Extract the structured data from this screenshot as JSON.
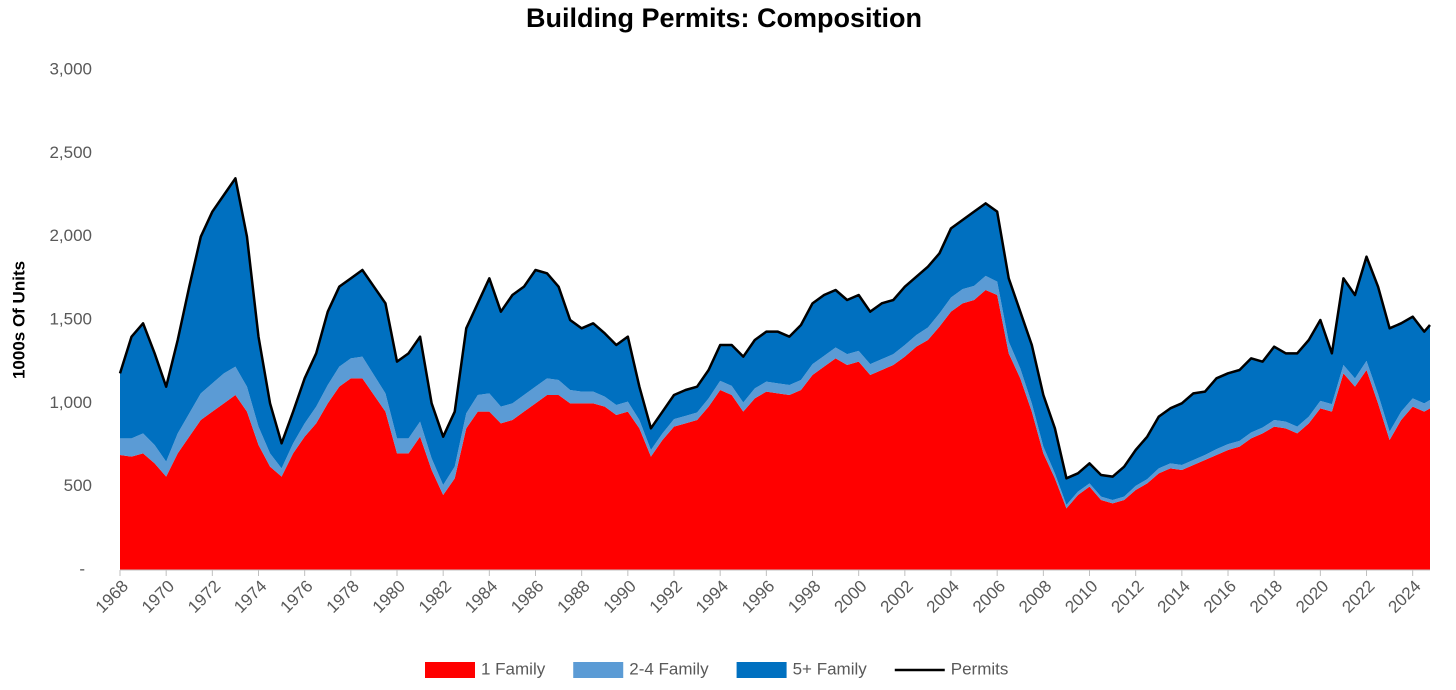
{
  "chart_data": {
    "type": "stacked-area",
    "title": "Building Permits: Composition",
    "y_label": "1000s Of Units",
    "x": [
      1968,
      1968.5,
      1969,
      1969.5,
      1970,
      1970.5,
      1971,
      1971.5,
      1972,
      1972.5,
      1973,
      1973.5,
      1974,
      1974.5,
      1975,
      1975.5,
      1976,
      1976.5,
      1977,
      1977.5,
      1978,
      1978.5,
      1979,
      1979.5,
      1980,
      1980.5,
      1981,
      1981.5,
      1982,
      1982.5,
      1983,
      1983.5,
      1984,
      1984.5,
      1985,
      1985.5,
      1986,
      1986.5,
      1987,
      1987.5,
      1988,
      1988.5,
      1989,
      1989.5,
      1990,
      1990.5,
      1991,
      1991.5,
      1992,
      1992.5,
      1993,
      1993.5,
      1994,
      1994.5,
      1995,
      1995.5,
      1996,
      1996.5,
      1997,
      1997.5,
      1998,
      1998.5,
      1999,
      1999.5,
      2000,
      2000.5,
      2001,
      2001.5,
      2002,
      2002.5,
      2003,
      2003.5,
      2004,
      2004.5,
      2005,
      2005.5,
      2006,
      2006.5,
      2007,
      2007.5,
      2008,
      2008.5,
      2009,
      2009.5,
      2010,
      2010.5,
      2011,
      2011.5,
      2012,
      2012.5,
      2013,
      2013.5,
      2014,
      2014.5,
      2015,
      2015.5,
      2016,
      2016.5,
      2017,
      2017.5,
      2018,
      2018.5,
      2019,
      2019.5,
      2020,
      2020.5,
      2021,
      2021.5,
      2022,
      2022.5,
      2023,
      2023.5,
      2024,
      2024.5,
      2024.75
    ],
    "series": [
      {
        "name": "1 Family",
        "type": "area",
        "color": "#ff0000",
        "values": [
          690,
          680,
          700,
          640,
          560,
          700,
          800,
          900,
          950,
          1000,
          1050,
          950,
          750,
          620,
          560,
          700,
          800,
          880,
          1000,
          1100,
          1150,
          1150,
          1050,
          950,
          700,
          700,
          800,
          600,
          450,
          550,
          850,
          950,
          950,
          880,
          900,
          950,
          1000,
          1050,
          1050,
          1000,
          1000,
          1000,
          980,
          930,
          950,
          850,
          680,
          780,
          860,
          880,
          900,
          980,
          1080,
          1050,
          950,
          1030,
          1070,
          1060,
          1050,
          1080,
          1170,
          1220,
          1270,
          1230,
          1250,
          1170,
          1200,
          1230,
          1280,
          1340,
          1380,
          1460,
          1550,
          1600,
          1620,
          1680,
          1650,
          1300,
          1150,
          950,
          700,
          550,
          370,
          450,
          500,
          420,
          400,
          420,
          480,
          520,
          580,
          610,
          600,
          630,
          660,
          690,
          720,
          740,
          790,
          820,
          860,
          850,
          820,
          880,
          970,
          950,
          1180,
          1100,
          1200,
          1000,
          780,
          900,
          980,
          950,
          970
        ]
      },
      {
        "name": "2-4 Family",
        "type": "area",
        "color": "#5b9bd5",
        "values": [
          100,
          110,
          120,
          110,
          90,
          120,
          140,
          160,
          170,
          180,
          170,
          150,
          110,
          80,
          50,
          60,
          80,
          100,
          110,
          120,
          120,
          130,
          120,
          110,
          90,
          90,
          90,
          70,
          60,
          70,
          90,
          100,
          110,
          100,
          100,
          100,
          100,
          100,
          90,
          80,
          70,
          70,
          60,
          60,
          60,
          50,
          40,
          40,
          45,
          45,
          45,
          50,
          55,
          55,
          55,
          60,
          60,
          60,
          60,
          60,
          65,
          65,
          65,
          65,
          65,
          65,
          65,
          65,
          70,
          70,
          75,
          80,
          85,
          85,
          85,
          85,
          80,
          70,
          60,
          50,
          40,
          30,
          20,
          20,
          20,
          20,
          20,
          20,
          25,
          25,
          30,
          30,
          30,
          30,
          30,
          35,
          35,
          35,
          35,
          35,
          40,
          40,
          40,
          40,
          45,
          45,
          50,
          50,
          55,
          55,
          50,
          50,
          50,
          50,
          50
        ]
      },
      {
        "name": "5+ Family",
        "type": "area",
        "color": "#0070c0",
        "values": [
          390,
          610,
          660,
          550,
          450,
          560,
          760,
          940,
          1030,
          1070,
          1130,
          900,
          540,
          300,
          150,
          190,
          270,
          320,
          440,
          480,
          480,
          520,
          530,
          540,
          460,
          510,
          510,
          330,
          290,
          330,
          510,
          550,
          690,
          570,
          650,
          650,
          700,
          630,
          560,
          420,
          380,
          410,
          380,
          360,
          390,
          200,
          130,
          130,
          145,
          155,
          155,
          170,
          215,
          245,
          275,
          290,
          300,
          310,
          290,
          330,
          365,
          365,
          345,
          325,
          335,
          315,
          335,
          325,
          350,
          350,
          365,
          360,
          415,
          415,
          445,
          435,
          420,
          380,
          340,
          350,
          310,
          270,
          160,
          110,
          120,
          130,
          140,
          180,
          215,
          255,
          310,
          330,
          370,
          400,
          380,
          425,
          425,
          425,
          445,
          395,
          440,
          410,
          440,
          460,
          485,
          305,
          520,
          500,
          625,
          645,
          620,
          530,
          490,
          430,
          450
        ]
      },
      {
        "name": "Permits",
        "type": "line",
        "color": "#000000",
        "values": [
          1180,
          1400,
          1480,
          1300,
          1100,
          1380,
          1700,
          2000,
          2150,
          2250,
          2350,
          2000,
          1400,
          1000,
          760,
          950,
          1150,
          1300,
          1550,
          1700,
          1750,
          1800,
          1700,
          1600,
          1250,
          1300,
          1400,
          1000,
          800,
          950,
          1450,
          1600,
          1750,
          1550,
          1650,
          1700,
          1800,
          1780,
          1700,
          1500,
          1450,
          1480,
          1420,
          1350,
          1400,
          1100,
          850,
          950,
          1050,
          1080,
          1100,
          1200,
          1350,
          1350,
          1280,
          1380,
          1430,
          1430,
          1400,
          1470,
          1600,
          1650,
          1680,
          1620,
          1650,
          1550,
          1600,
          1620,
          1700,
          1760,
          1820,
          1900,
          2050,
          2100,
          2150,
          2200,
          2150,
          1750,
          1550,
          1350,
          1050,
          850,
          550,
          580,
          640,
          570,
          560,
          620,
          720,
          800,
          920,
          970,
          1000,
          1060,
          1070,
          1150,
          1180,
          1200,
          1270,
          1250,
          1340,
          1300,
          1300,
          1380,
          1500,
          1300,
          1750,
          1650,
          1880,
          1700,
          1450,
          1480,
          1520,
          1430,
          1470
        ]
      }
    ],
    "xlim": [
      1968,
      2024.75
    ],
    "xticks": [
      1968,
      1970,
      1972,
      1974,
      1976,
      1978,
      1980,
      1982,
      1984,
      1986,
      1988,
      1990,
      1992,
      1994,
      1996,
      1998,
      2000,
      2002,
      2004,
      2006,
      2008,
      2010,
      2012,
      2014,
      2016,
      2018,
      2020,
      2022,
      2024
    ],
    "ylim": [
      0,
      3000
    ],
    "yticks": [
      {
        "value": 0,
        "label": "-"
      },
      500,
      {
        "value": 1000,
        "label": "1,000"
      },
      {
        "value": 1500,
        "label": "1,500"
      },
      {
        "value": 2000,
        "label": "2,000"
      },
      {
        "value": 2500,
        "label": "2,500"
      },
      {
        "value": 3000,
        "label": "3,000"
      }
    ],
    "grid": false,
    "legend": "bottom"
  }
}
